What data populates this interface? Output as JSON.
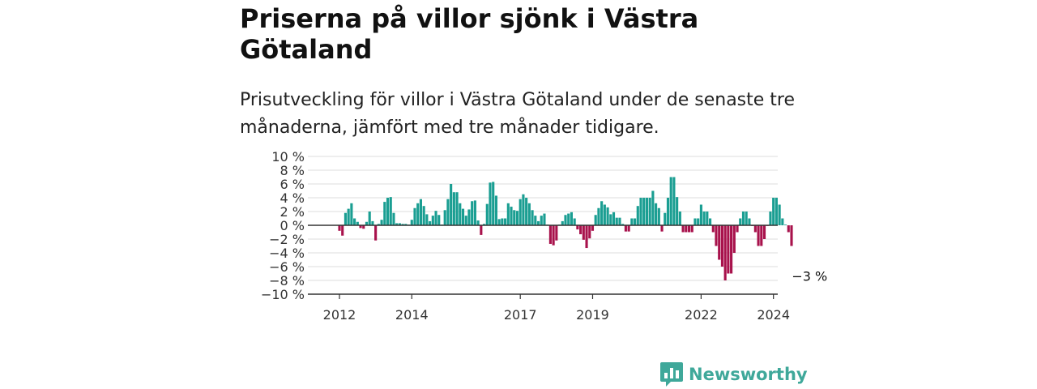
{
  "header": {
    "title": "Priserna på villor sjönk i Västra Götaland",
    "subtitle": "Prisutveckling för villor i Västra Götaland under de senaste tre månaderna, jämfört med tre månader tidigare."
  },
  "brand": {
    "name": "Newsworthy",
    "color": "#3fa89a"
  },
  "chart_data": {
    "type": "bar",
    "ylim": [
      -10,
      10
    ],
    "yticks": [
      "10 %",
      "8 %",
      "6 %",
      "4 %",
      "2 %",
      "0 %",
      "−2 %",
      "−4 %",
      "−6 %",
      "−8 %",
      "−10 %"
    ],
    "ytick_values": [
      10,
      8,
      6,
      4,
      2,
      0,
      -2,
      -4,
      -6,
      -8,
      -10
    ],
    "xticks": [
      "2012",
      "2014",
      "2017",
      "2019",
      "2022",
      "2024"
    ],
    "xtick_positions": [
      "2012-01",
      "2014-01",
      "2017-01",
      "2019-01",
      "2022-01",
      "2024-01"
    ],
    "x_start": "2012-01",
    "frequency": "monthly",
    "grid": true,
    "colors": {
      "positive": "#1a9e92",
      "negative": "#a8124c",
      "baseline": "#333333",
      "grid": "#dddddd"
    },
    "annotation": {
      "text": "−3 %",
      "x": "2025-01",
      "y": -3
    },
    "values": [
      -0.8,
      -1.5,
      1.8,
      2.4,
      3.2,
      1.0,
      0.5,
      -0.4,
      -0.5,
      0.5,
      2.0,
      0.6,
      -2.2,
      0.2,
      0.8,
      3.4,
      4.0,
      4.1,
      1.8,
      0.3,
      0.3,
      0.2,
      0.2,
      0.1,
      0.8,
      2.5,
      3.2,
      3.8,
      2.8,
      1.6,
      0.6,
      1.4,
      2.1,
      1.5,
      0.1,
      2.2,
      3.8,
      6.0,
      4.8,
      4.8,
      3.2,
      2.4,
      1.4,
      2.3,
      3.5,
      3.6,
      0.7,
      -1.4,
      0.2,
      3.1,
      6.2,
      6.3,
      4.3,
      0.9,
      1.0,
      1.0,
      3.2,
      2.7,
      2.2,
      2.1,
      3.8,
      4.5,
      4.0,
      3.2,
      2.2,
      1.4,
      0.6,
      1.4,
      1.7,
      0.1,
      -2.7,
      -2.9,
      -2.2,
      0.1,
      0.6,
      1.5,
      1.7,
      1.9,
      1.0,
      -0.6,
      -1.3,
      -2.1,
      -3.3,
      -1.9,
      -0.8,
      1.5,
      2.5,
      3.5,
      3.0,
      2.6,
      1.6,
      1.9,
      1.1,
      1.1,
      0.2,
      -0.9,
      -0.9,
      1.0,
      1.0,
      2.8,
      4.0,
      4.0,
      4.0,
      4.0,
      5.0,
      3.2,
      2.5,
      -0.9,
      1.8,
      4.0,
      7.0,
      7.0,
      4.1,
      2.0,
      -1.0,
      -1.0,
      -1.0,
      -1.0,
      1.0,
      1.0,
      3.0,
      2.0,
      2.0,
      1.0,
      -1.0,
      -3.0,
      -5.0,
      -6.0,
      -8.0,
      -7.0,
      -7.0,
      -4.0,
      -1.0,
      1.0,
      2.0,
      2.0,
      1.0,
      -0.1,
      -1.0,
      -3.0,
      -3.0,
      -2.0,
      -0.1,
      2.0,
      4.0,
      4.0,
      3.0,
      1.0,
      0.1,
      -1.0,
      -3.0
    ]
  }
}
